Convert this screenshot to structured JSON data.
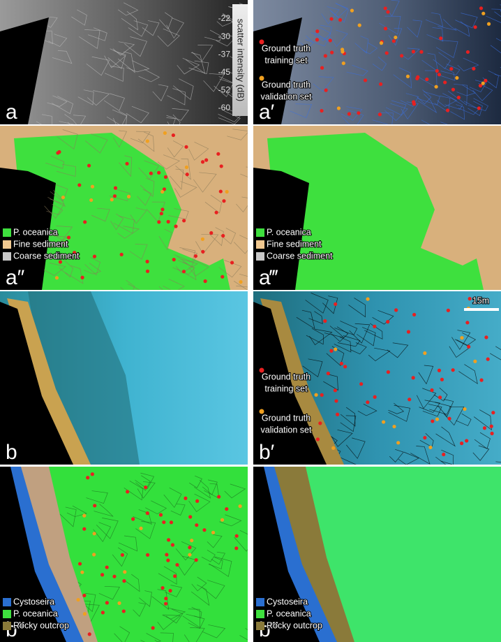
{
  "panels": [
    {
      "label": "a",
      "colorbar": {
        "title": "scatter intensity (dB)",
        "ticks": [
          "-22",
          "-30",
          "-37",
          "-45",
          "-52",
          "-60"
        ]
      }
    },
    {
      "label": "a′",
      "legend": [
        {
          "lines": [
            "Ground truth",
            "training set"
          ]
        },
        {
          "lines": [
            "Ground truth",
            "validation set"
          ]
        }
      ]
    },
    {
      "label": "a″",
      "legend": [
        "P. oceanica",
        "Fine sediment",
        "Coarse sediment"
      ]
    },
    {
      "label": "a‴",
      "legend": [
        "P. oceanica",
        "Fine sediment",
        "Coarse sediment"
      ]
    },
    {
      "label": "b"
    },
    {
      "label": "b′",
      "scale_bar": "15m",
      "legend": [
        {
          "lines": [
            "Ground truth",
            "training set"
          ]
        },
        {
          "lines": [
            "Ground truth",
            "validation set"
          ]
        }
      ]
    },
    {
      "label": "b″",
      "legend": [
        "Cystoseira",
        "P. oceanica",
        "Rocky outcrop"
      ]
    },
    {
      "label": "b‴",
      "legend": [
        "Cystoseira",
        "P. oceanica",
        "Rocky outcrop"
      ]
    }
  ]
}
